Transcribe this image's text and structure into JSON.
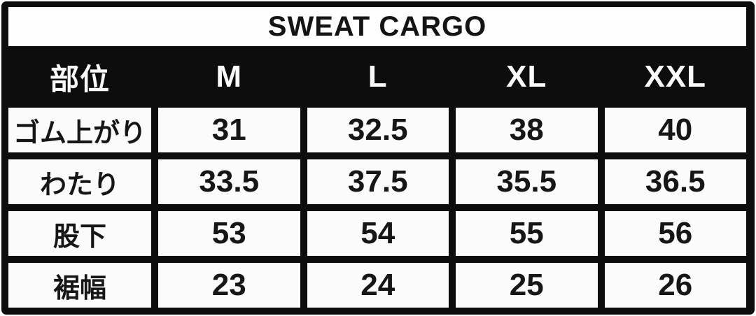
{
  "chart_data": {
    "type": "table",
    "title": "SWEAT CARGO",
    "columns": [
      "部位",
      "M",
      "L",
      "XL",
      "XXL"
    ],
    "rows": [
      {
        "label": "ゴム上がり",
        "values": [
          "31",
          "32.5",
          "38",
          "40"
        ]
      },
      {
        "label": "わたり",
        "values": [
          "33.5",
          "37.5",
          "35.5",
          "36.5"
        ]
      },
      {
        "label": "股下",
        "values": [
          "53",
          "54",
          "55",
          "56"
        ]
      },
      {
        "label": "裾幅",
        "values": [
          "23",
          "24",
          "25",
          "26"
        ]
      }
    ]
  },
  "colors": {
    "frame_black": "#0d0d0d",
    "cell_background": "#fbfbfb",
    "title_background": "#fefefe",
    "header_text": "#fafafa",
    "cell_text": "#161616"
  }
}
